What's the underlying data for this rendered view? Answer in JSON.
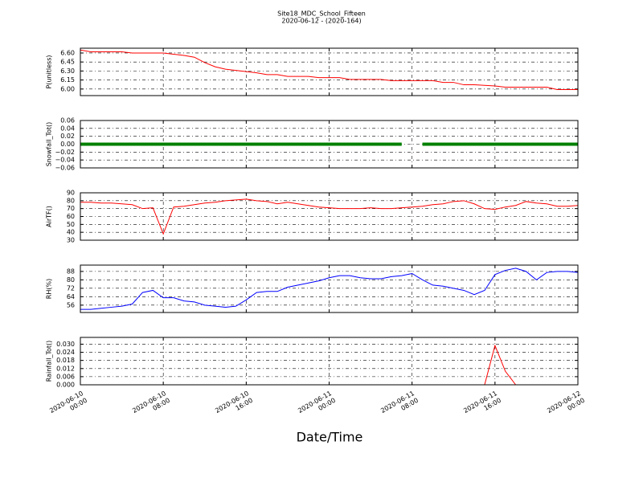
{
  "chart_data": [
    {
      "type": "line",
      "title": "Site18_MDC_School_Fifteen",
      "subtitle": "2020-06-12 - (2020-164)",
      "ylabel": "P(unitless)",
      "x": [
        "2020-06-10 00:00",
        "2020-06-10 01:00",
        "2020-06-10 02:00",
        "2020-06-10 03:00",
        "2020-06-10 04:00",
        "2020-06-10 05:00",
        "2020-06-10 06:00",
        "2020-06-10 07:00",
        "2020-06-10 08:00",
        "2020-06-10 09:00",
        "2020-06-10 10:00",
        "2020-06-10 11:00",
        "2020-06-10 12:00",
        "2020-06-10 13:00",
        "2020-06-10 14:00",
        "2020-06-10 15:00",
        "2020-06-10 16:00",
        "2020-06-10 17:00",
        "2020-06-10 18:00",
        "2020-06-10 19:00",
        "2020-06-10 20:00",
        "2020-06-10 21:00",
        "2020-06-10 22:00",
        "2020-06-10 23:00",
        "2020-06-11 00:00",
        "2020-06-11 01:00",
        "2020-06-11 02:00",
        "2020-06-11 03:00",
        "2020-06-11 04:00",
        "2020-06-11 05:00",
        "2020-06-11 06:00",
        "2020-06-11 07:00",
        "2020-06-11 08:00",
        "2020-06-11 09:00",
        "2020-06-11 10:00",
        "2020-06-11 11:00",
        "2020-06-11 12:00",
        "2020-06-11 13:00",
        "2020-06-11 14:00",
        "2020-06-11 15:00",
        "2020-06-11 16:00",
        "2020-06-11 17:00",
        "2020-06-11 18:00",
        "2020-06-11 19:00",
        "2020-06-11 20:00",
        "2020-06-11 21:00",
        "2020-06-11 22:00",
        "2020-06-11 23:00",
        "2020-06-12 00:00"
      ],
      "xlim": [
        "2020-06-10 00:00",
        "2020-06-12 00:00"
      ],
      "series": [
        {
          "color": "#ff0000",
          "linewidth": 1,
          "values": [
            6.65,
            6.62,
            6.62,
            6.62,
            6.62,
            6.6,
            6.6,
            6.6,
            6.6,
            6.58,
            6.56,
            6.53,
            6.44,
            6.37,
            6.33,
            6.31,
            6.29,
            6.27,
            6.24,
            6.24,
            6.21,
            6.21,
            6.21,
            6.19,
            6.19,
            6.19,
            6.16,
            6.16,
            6.16,
            6.16,
            6.14,
            6.14,
            6.14,
            6.14,
            6.14,
            6.11,
            6.11,
            6.07,
            6.07,
            6.06,
            6.05,
            6.03,
            6.03,
            6.03,
            6.03,
            6.03,
            5.99,
            5.99,
            5.99
          ]
        }
      ],
      "ylim": [
        5.89,
        6.68
      ],
      "yticks": [
        {
          "value": 6.0,
          "label": "6.00"
        },
        6.15,
        {
          "value": 6.3,
          "label": "6.30"
        },
        6.45,
        {
          "value": 6.6,
          "label": "6.60"
        }
      ],
      "grid": true
    },
    {
      "type": "line",
      "ylabel": "Snowfall_Tot()",
      "x": [
        "2020-06-10 00:00",
        "2020-06-10 01:00",
        "2020-06-10 02:00",
        "2020-06-10 03:00",
        "2020-06-10 04:00",
        "2020-06-10 05:00",
        "2020-06-10 06:00",
        "2020-06-10 07:00",
        "2020-06-10 08:00",
        "2020-06-10 09:00",
        "2020-06-10 10:00",
        "2020-06-10 11:00",
        "2020-06-10 12:00",
        "2020-06-10 13:00",
        "2020-06-10 14:00",
        "2020-06-10 15:00",
        "2020-06-10 16:00",
        "2020-06-10 17:00",
        "2020-06-10 18:00",
        "2020-06-10 19:00",
        "2020-06-10 20:00",
        "2020-06-10 21:00",
        "2020-06-10 22:00",
        "2020-06-10 23:00",
        "2020-06-11 00:00",
        "2020-06-11 01:00",
        "2020-06-11 02:00",
        "2020-06-11 03:00",
        "2020-06-11 04:00",
        "2020-06-11 05:00",
        "2020-06-11 06:00",
        "2020-06-11 07:00",
        "2020-06-11 08:00",
        "2020-06-11 09:00",
        "2020-06-11 10:00",
        "2020-06-11 11:00",
        "2020-06-11 12:00",
        "2020-06-11 13:00",
        "2020-06-11 14:00",
        "2020-06-11 15:00",
        "2020-06-11 16:00",
        "2020-06-11 17:00",
        "2020-06-11 18:00",
        "2020-06-11 19:00",
        "2020-06-11 20:00",
        "2020-06-11 21:00",
        "2020-06-11 22:00",
        "2020-06-11 23:00",
        "2020-06-12 00:00"
      ],
      "xlim": [
        "2020-06-10 00:00",
        "2020-06-12 00:00"
      ],
      "series": [
        {
          "color": "#008000",
          "linewidth": 4,
          "values": [
            0,
            0,
            0,
            0,
            0,
            0,
            0,
            0,
            0,
            0,
            0,
            0,
            0,
            0,
            0,
            0,
            0,
            0,
            0,
            0,
            0,
            0,
            0,
            0,
            0,
            0,
            0,
            0,
            0,
            0,
            0,
            0,
            null,
            0,
            0,
            0,
            0,
            0,
            0,
            0,
            0,
            0,
            0,
            0,
            0,
            0,
            0,
            0,
            0
          ]
        }
      ],
      "ylim": [
        -0.06,
        0.06
      ],
      "yticks": [
        {
          "value": -0.06,
          "label": "−0.06"
        },
        {
          "value": -0.04,
          "label": "−0.04"
        },
        {
          "value": -0.02,
          "label": "−0.02"
        },
        {
          "value": 0,
          "label": "0.00"
        },
        0.02,
        0.04,
        0.06
      ],
      "grid": true
    },
    {
      "type": "line",
      "ylabel": "AirTF()",
      "x": [
        "2020-06-10 00:00",
        "2020-06-10 01:00",
        "2020-06-10 02:00",
        "2020-06-10 03:00",
        "2020-06-10 04:00",
        "2020-06-10 05:00",
        "2020-06-10 06:00",
        "2020-06-10 07:00",
        "2020-06-10 08:00",
        "2020-06-10 09:00",
        "2020-06-10 10:00",
        "2020-06-10 11:00",
        "2020-06-10 12:00",
        "2020-06-10 13:00",
        "2020-06-10 14:00",
        "2020-06-10 15:00",
        "2020-06-10 16:00",
        "2020-06-10 17:00",
        "2020-06-10 18:00",
        "2020-06-10 19:00",
        "2020-06-10 20:00",
        "2020-06-10 21:00",
        "2020-06-10 22:00",
        "2020-06-10 23:00",
        "2020-06-11 00:00",
        "2020-06-11 01:00",
        "2020-06-11 02:00",
        "2020-06-11 03:00",
        "2020-06-11 04:00",
        "2020-06-11 05:00",
        "2020-06-11 06:00",
        "2020-06-11 07:00",
        "2020-06-11 08:00",
        "2020-06-11 09:00",
        "2020-06-11 10:00",
        "2020-06-11 11:00",
        "2020-06-11 12:00",
        "2020-06-11 13:00",
        "2020-06-11 14:00",
        "2020-06-11 15:00",
        "2020-06-11 16:00",
        "2020-06-11 17:00",
        "2020-06-11 18:00",
        "2020-06-11 19:00",
        "2020-06-11 20:00",
        "2020-06-11 21:00",
        "2020-06-11 22:00",
        "2020-06-11 23:00",
        "2020-06-12 00:00"
      ],
      "xlim": [
        "2020-06-10 00:00",
        "2020-06-12 00:00"
      ],
      "series": [
        {
          "color": "#ff0000",
          "linewidth": 1,
          "values": [
            78,
            78,
            77,
            77,
            76,
            75,
            70,
            71,
            38,
            72,
            73,
            75,
            77,
            78,
            80,
            81,
            82,
            80,
            79,
            76,
            78,
            76,
            74,
            72,
            71,
            70,
            70,
            70,
            71,
            70,
            70,
            71,
            72,
            73,
            75,
            76,
            79,
            80,
            76,
            70,
            69,
            72,
            74,
            79,
            77,
            76,
            73,
            73,
            74
          ]
        }
      ],
      "ylim": [
        30,
        90
      ],
      "yticks": [
        30,
        40,
        50,
        60,
        70,
        80,
        90
      ],
      "grid": true
    },
    {
      "type": "line",
      "ylabel": "RH(%)",
      "x": [
        "2020-06-10 00:00",
        "2020-06-10 01:00",
        "2020-06-10 02:00",
        "2020-06-10 03:00",
        "2020-06-10 04:00",
        "2020-06-10 05:00",
        "2020-06-10 06:00",
        "2020-06-10 07:00",
        "2020-06-10 08:00",
        "2020-06-10 09:00",
        "2020-06-10 10:00",
        "2020-06-10 11:00",
        "2020-06-10 12:00",
        "2020-06-10 13:00",
        "2020-06-10 14:00",
        "2020-06-10 15:00",
        "2020-06-10 16:00",
        "2020-06-10 17:00",
        "2020-06-10 18:00",
        "2020-06-10 19:00",
        "2020-06-10 20:00",
        "2020-06-10 21:00",
        "2020-06-10 22:00",
        "2020-06-10 23:00",
        "2020-06-11 00:00",
        "2020-06-11 01:00",
        "2020-06-11 02:00",
        "2020-06-11 03:00",
        "2020-06-11 04:00",
        "2020-06-11 05:00",
        "2020-06-11 06:00",
        "2020-06-11 07:00",
        "2020-06-11 08:00",
        "2020-06-11 09:00",
        "2020-06-11 10:00",
        "2020-06-11 11:00",
        "2020-06-11 12:00",
        "2020-06-11 13:00",
        "2020-06-11 14:00",
        "2020-06-11 15:00",
        "2020-06-11 16:00",
        "2020-06-11 17:00",
        "2020-06-11 18:00",
        "2020-06-11 19:00",
        "2020-06-11 20:00",
        "2020-06-11 21:00",
        "2020-06-11 22:00",
        "2020-06-11 23:00",
        "2020-06-12 00:00"
      ],
      "xlim": [
        "2020-06-10 00:00",
        "2020-06-12 00:00"
      ],
      "series": [
        {
          "color": "#0000ff",
          "linewidth": 1,
          "values": [
            52,
            52,
            53,
            54,
            55,
            57,
            68,
            70,
            63,
            63,
            60,
            59,
            56,
            55,
            54,
            55,
            61,
            68,
            69,
            69,
            73,
            75,
            77,
            79,
            82,
            84,
            84,
            82,
            81,
            81,
            83,
            84,
            86,
            80,
            75,
            74,
            72,
            70,
            66,
            70,
            85,
            89,
            91,
            88,
            80,
            87,
            88,
            88,
            87
          ]
        }
      ],
      "ylim": [
        49,
        94
      ],
      "yticks": [
        56,
        64,
        72,
        80,
        88
      ],
      "grid": true
    },
    {
      "type": "line",
      "ylabel": "Rainfall_Tot()",
      "xlabel": "Date/Time",
      "x": [
        "2020-06-10 00:00",
        "2020-06-10 01:00",
        "2020-06-10 02:00",
        "2020-06-10 03:00",
        "2020-06-10 04:00",
        "2020-06-10 05:00",
        "2020-06-10 06:00",
        "2020-06-10 07:00",
        "2020-06-10 08:00",
        "2020-06-10 09:00",
        "2020-06-10 10:00",
        "2020-06-10 11:00",
        "2020-06-10 12:00",
        "2020-06-10 13:00",
        "2020-06-10 14:00",
        "2020-06-10 15:00",
        "2020-06-10 16:00",
        "2020-06-10 17:00",
        "2020-06-10 18:00",
        "2020-06-10 19:00",
        "2020-06-10 20:00",
        "2020-06-10 21:00",
        "2020-06-10 22:00",
        "2020-06-10 23:00",
        "2020-06-11 00:00",
        "2020-06-11 01:00",
        "2020-06-11 02:00",
        "2020-06-11 03:00",
        "2020-06-11 04:00",
        "2020-06-11 05:00",
        "2020-06-11 06:00",
        "2020-06-11 07:00",
        "2020-06-11 08:00",
        "2020-06-11 09:00",
        "2020-06-11 10:00",
        "2020-06-11 11:00",
        "2020-06-11 12:00",
        "2020-06-11 13:00",
        "2020-06-11 14:00",
        "2020-06-11 15:00",
        "2020-06-11 16:00",
        "2020-06-11 17:00",
        "2020-06-11 18:00",
        "2020-06-11 19:00",
        "2020-06-11 20:00",
        "2020-06-11 21:00",
        "2020-06-11 22:00",
        "2020-06-11 23:00",
        "2020-06-12 00:00"
      ],
      "xlim": [
        "2020-06-10 00:00",
        "2020-06-12 00:00"
      ],
      "xticks": [
        {
          "value": "2020-06-10 00:00",
          "label": "2020-06-10\n00:00"
        },
        {
          "value": "2020-06-10 08:00",
          "label": "2020-06-10\n08:00"
        },
        {
          "value": "2020-06-10 16:00",
          "label": "2020-06-10\n16:00"
        },
        {
          "value": "2020-06-11 00:00",
          "label": "2020-06-11\n00:00"
        },
        {
          "value": "2020-06-11 08:00",
          "label": "2020-06-11\n08:00"
        },
        {
          "value": "2020-06-11 16:00",
          "label": "2020-06-11\n16:00"
        },
        {
          "value": "2020-06-12 00:00",
          "label": "2020-06-12\n00:00"
        }
      ],
      "series": [
        {
          "color": "#ff0000",
          "linewidth": 1,
          "values": [
            0,
            0,
            0,
            0,
            0,
            0,
            0,
            0,
            0,
            0,
            0,
            0,
            0,
            0,
            0,
            0,
            0,
            0,
            0,
            0,
            0,
            0,
            0,
            0,
            0,
            0,
            0,
            0,
            0,
            0,
            0,
            0,
            0,
            0,
            0,
            0,
            0,
            0,
            0,
            0,
            0.029,
            0.01,
            0,
            0,
            0,
            0,
            0,
            0,
            0
          ]
        }
      ],
      "ylim": [
        0,
        0.035
      ],
      "yticks": [
        {
          "value": 0,
          "label": "0.000"
        },
        {
          "value": 0.006,
          "label": "0.006"
        },
        {
          "value": 0.012,
          "label": "0.012"
        },
        {
          "value": 0.018,
          "label": "0.018"
        },
        {
          "value": 0.024,
          "label": "0.024"
        },
        {
          "value": 0.03,
          "label": "0.030"
        }
      ],
      "grid": true
    }
  ]
}
